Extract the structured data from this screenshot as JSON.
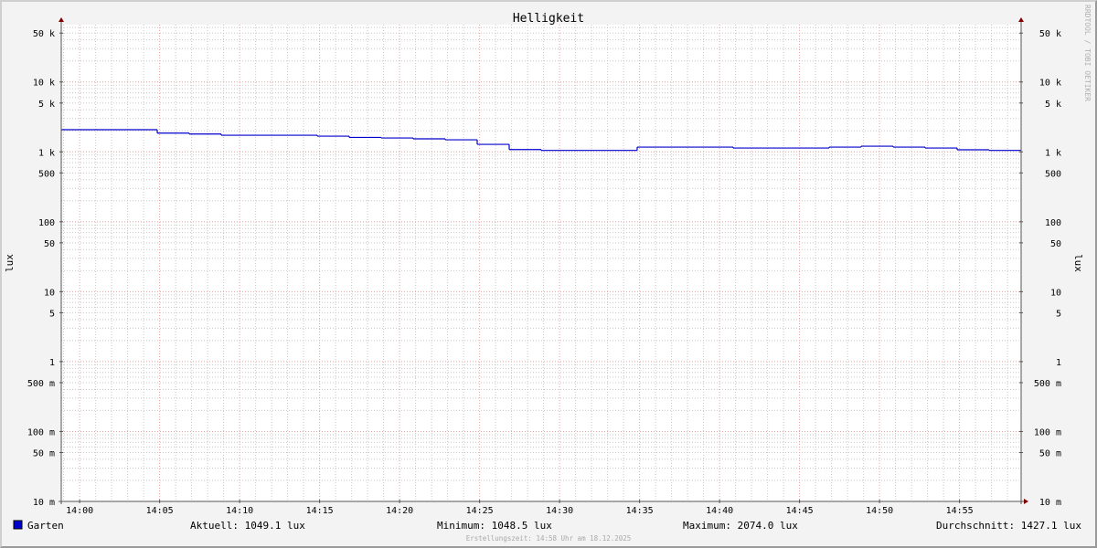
{
  "chart_data": {
    "type": "line",
    "title": "Helligkeit",
    "ylabel": "lux",
    "y_scale": "log",
    "ylim": [
      0.01,
      66000
    ],
    "x_range": [
      "13:58:51",
      "14:58:51"
    ],
    "grid": true,
    "y_ticks": [
      {
        "value": 50000,
        "label": "50 k"
      },
      {
        "value": 10000,
        "label": "10 k"
      },
      {
        "value": 5000,
        "label": "5 k"
      },
      {
        "value": 1000,
        "label": "1 k"
      },
      {
        "value": 500,
        "label": "500"
      },
      {
        "value": 100,
        "label": "100"
      },
      {
        "value": 50,
        "label": "50"
      },
      {
        "value": 10,
        "label": "10"
      },
      {
        "value": 5,
        "label": "5"
      },
      {
        "value": 1,
        "label": "1"
      },
      {
        "value": 0.5,
        "label": "500 m"
      },
      {
        "value": 0.1,
        "label": "100 m"
      },
      {
        "value": 0.05,
        "label": "50 m"
      },
      {
        "value": 0.01,
        "label": "10 m"
      }
    ],
    "x_ticks": [
      "14:00",
      "14:05",
      "14:10",
      "14:15",
      "14:20",
      "14:25",
      "14:30",
      "14:35",
      "14:40",
      "14:45",
      "14:50",
      "14:55"
    ],
    "series": [
      {
        "name": "Garten",
        "color": "#0000cc",
        "x": [
          "13:58:51",
          "14:00:51",
          "14:02:51",
          "14:04:51",
          "14:06:51",
          "14:08:51",
          "14:10:51",
          "14:12:51",
          "14:14:51",
          "14:16:51",
          "14:18:51",
          "14:20:51",
          "14:22:51",
          "14:24:51",
          "14:26:51",
          "14:28:51",
          "14:30:51",
          "14:32:51",
          "14:34:51",
          "14:36:51",
          "14:38:51",
          "14:40:51",
          "14:42:51",
          "14:44:51",
          "14:46:51",
          "14:48:51",
          "14:50:51",
          "14:52:51",
          "14:54:51",
          "14:56:51"
        ],
        "values": [
          2074,
          2074,
          2074,
          1854,
          1798,
          1730,
          1730,
          1730,
          1679,
          1610,
          1581,
          1535,
          1489,
          1280,
          1079,
          1048.5,
          1048.5,
          1048.5,
          1170,
          1170,
          1170,
          1135,
          1135,
          1135,
          1170,
          1205,
          1170,
          1135,
          1070,
          1049.1
        ]
      }
    ],
    "axis_color": "#800000",
    "major_grid_color": "#e8a0a0",
    "minor_grid_color": "#c8c8c8"
  },
  "legend": {
    "series_name": "Garten",
    "current": "Aktuell: 1049.1 lux",
    "minimum": "Minimum: 1048.5 lux",
    "maximum": "Maximum: 2074.0 lux",
    "average": "Durchschnitt: 1427.1 lux"
  },
  "footer": "Erstellungszeit: 14:58 Uhr am 18.12.2025",
  "watermark": "RRDTOOL / TOBI OETIKER"
}
